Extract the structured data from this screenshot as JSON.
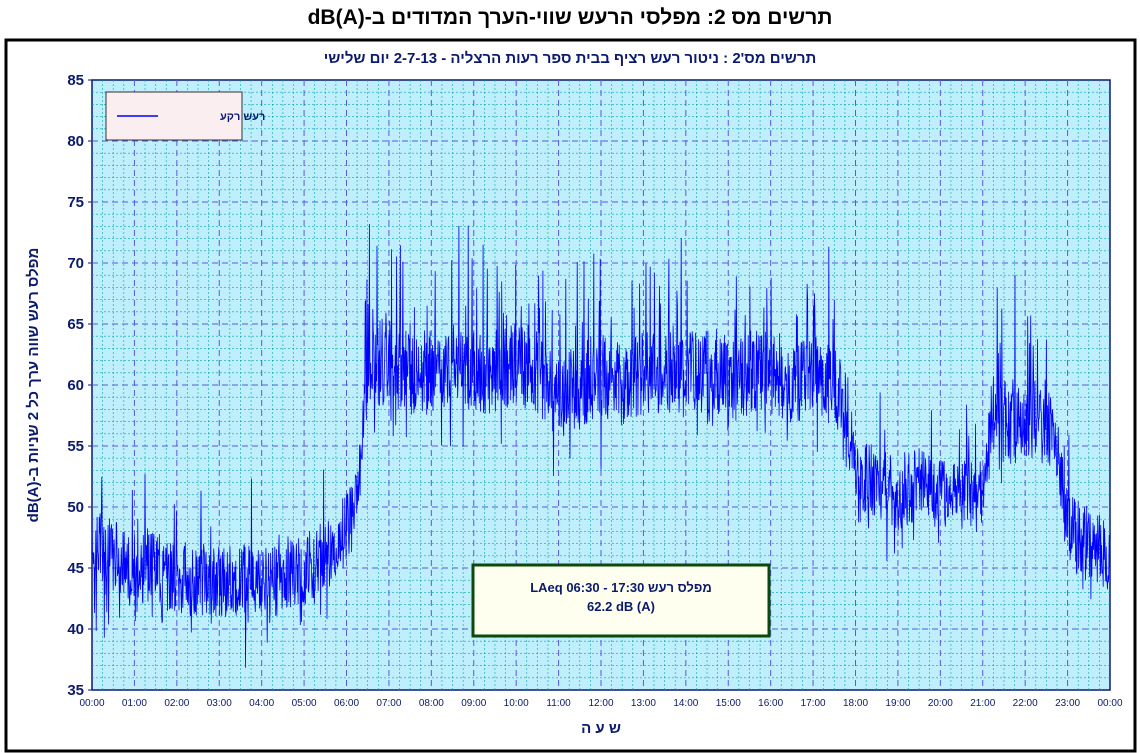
{
  "caption": "תרשים מס 2: מפלסי הרעש שווי-הערך המדודים ב-dB(A)",
  "chart_data": {
    "type": "line",
    "title": "תרשים מס'2 : ניטור רעש רציף בבית ספר רעות הרצליה - 2-7-13 יום שלישי",
    "xlabel": "ש ע ה",
    "ylabel": "dB(A)-מפלס רעש שווה ערך כל 2 שניות ב",
    "ylim": [
      35,
      85
    ],
    "yticks": [
      "35",
      "40",
      "45",
      "50",
      "55",
      "60",
      "65",
      "70",
      "75",
      "80",
      "85"
    ],
    "xlim": [
      "00:00",
      "24:00"
    ],
    "xticks": [
      "00:00",
      "01:00",
      "02:00",
      "03:00",
      "04:00",
      "05:00",
      "06:00",
      "07:00",
      "08:00",
      "09:00",
      "10:00",
      "11:00",
      "12:00",
      "13:00",
      "14:00",
      "15:00",
      "16:00",
      "17:00",
      "18:00",
      "19:00",
      "20:00",
      "21:00",
      "22:00",
      "23:00",
      "00:00"
    ],
    "grid": true,
    "legend": {
      "position": "top-left",
      "entries": [
        "רעש רקע"
      ]
    },
    "series": [
      {
        "name": "רעש רקע",
        "color": "#0000ff",
        "x": [
          "00:00",
          "00:30",
          "01:00",
          "01:30",
          "02:00",
          "02:30",
          "03:00",
          "03:30",
          "04:00",
          "04:30",
          "05:00",
          "05:30",
          "06:00",
          "06:15",
          "06:30",
          "07:00",
          "07:30",
          "08:00",
          "08:30",
          "09:00",
          "09:30",
          "10:00",
          "10:30",
          "11:00",
          "11:30",
          "12:00",
          "12:30",
          "13:00",
          "13:30",
          "14:00",
          "14:30",
          "15:00",
          "15:30",
          "16:00",
          "16:30",
          "17:00",
          "17:30",
          "17:45",
          "18:00",
          "18:30",
          "19:00",
          "19:30",
          "20:00",
          "20:30",
          "21:00",
          "21:15",
          "21:30",
          "22:00",
          "22:30",
          "22:45",
          "23:00",
          "23:30",
          "24:00"
        ],
        "y": [
          47,
          46,
          45,
          45,
          44,
          44,
          44,
          44,
          44,
          44,
          45,
          46,
          48,
          50,
          61,
          62,
          61,
          61,
          62,
          61,
          61,
          62,
          61,
          59,
          60,
          61,
          60,
          61,
          61,
          61,
          61,
          60,
          61,
          61,
          60,
          61,
          60,
          59,
          53,
          52,
          51,
          52,
          51,
          51,
          51,
          58,
          57,
          57,
          57,
          55,
          48,
          47,
          46
        ]
      }
    ],
    "annotations": [
      {
        "lines": [
          "מפלס רעש LAeq 06:30 - 17:30",
          "62.2 dB (A)"
        ]
      }
    ],
    "colors": {
      "background": "#bfeefc",
      "grid_major": "#5a5ae0",
      "grid_minor": "#00a8a8",
      "frame": "#0a1a6e"
    }
  }
}
